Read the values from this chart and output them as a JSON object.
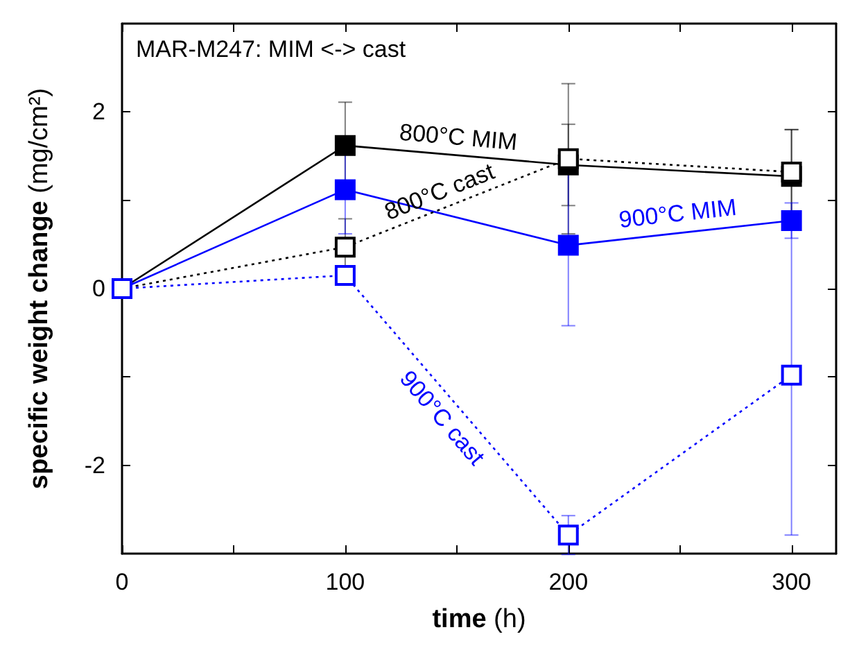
{
  "chart_data": {
    "type": "line",
    "title": "MAR-M247: MIM <-> cast",
    "xlabel": "time (h)",
    "ylabel": "specific weight change (mg/cm²)",
    "x": [
      0,
      100,
      200,
      300
    ],
    "series": [
      {
        "name": "800°C MIM",
        "color": "#000000",
        "marker": "square",
        "line_style": "solid",
        "values": [
          0,
          1.62,
          1.4,
          1.27
        ],
        "errors": [
          null,
          0.49,
          0.46,
          0.53
        ]
      },
      {
        "name": "800°C cast",
        "color": "#000000",
        "marker": "square",
        "line_style": "dotted",
        "values": [
          0,
          0.47,
          1.47,
          1.32
        ],
        "errors": [
          null,
          0.32,
          0.85,
          0.48
        ]
      },
      {
        "name": "900°C MIM",
        "color": "#0000ff",
        "marker": "square",
        "line_style": "solid",
        "values": [
          0,
          1.12,
          0.49,
          0.77
        ],
        "errors": [
          null,
          0.5,
          0.91,
          0.2
        ]
      },
      {
        "name": "900°C cast",
        "color": "#0000ff",
        "marker": "square",
        "line_style": "dotted",
        "values": [
          0,
          0.15,
          -2.79,
          -0.98
        ],
        "errors": [
          null,
          null,
          0.22,
          1.81
        ]
      }
    ],
    "xlim": [
      0,
      320
    ],
    "xticks": [
      0,
      {
        "value": 50,
        "label": null
      },
      100,
      {
        "value": 150,
        "label": null
      },
      200,
      {
        "value": 250,
        "label": null
      },
      300
    ],
    "ylim": [
      -3,
      3
    ],
    "yticks": [
      -2,
      {
        "value": -1,
        "label": null
      },
      0,
      {
        "value": 1,
        "label": null
      },
      2
    ],
    "grid": false,
    "legend": false
  }
}
